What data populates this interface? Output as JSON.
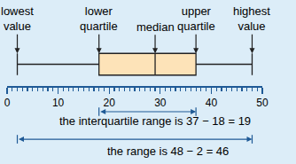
{
  "chart_data": {
    "type": "box",
    "orientation": "horizontal",
    "min": 2,
    "q1": 18,
    "median": 29,
    "q3": 37,
    "max": 48,
    "color": "#fde3b8",
    "xlim": [
      0,
      50
    ],
    "xticks": [
      0,
      10,
      20,
      30,
      40,
      50
    ],
    "annotations": [
      {
        "lines": [
          "lowest",
          "value"
        ],
        "x": 2
      },
      {
        "lines": [
          "lower",
          "quartile"
        ],
        "x": 18
      },
      {
        "lines": [
          "median"
        ],
        "x": 29
      },
      {
        "lines": [
          "upper",
          "quartile"
        ],
        "x": 37
      },
      {
        "lines": [
          "highest",
          "value"
        ],
        "x": 48
      }
    ],
    "range_notes": [
      {
        "text": "the interquartile range is 37 − 18 = 19",
        "from": 18,
        "to": 37
      },
      {
        "text": "the range is 48 − 2 = 46",
        "from": 2,
        "to": 48
      }
    ]
  }
}
